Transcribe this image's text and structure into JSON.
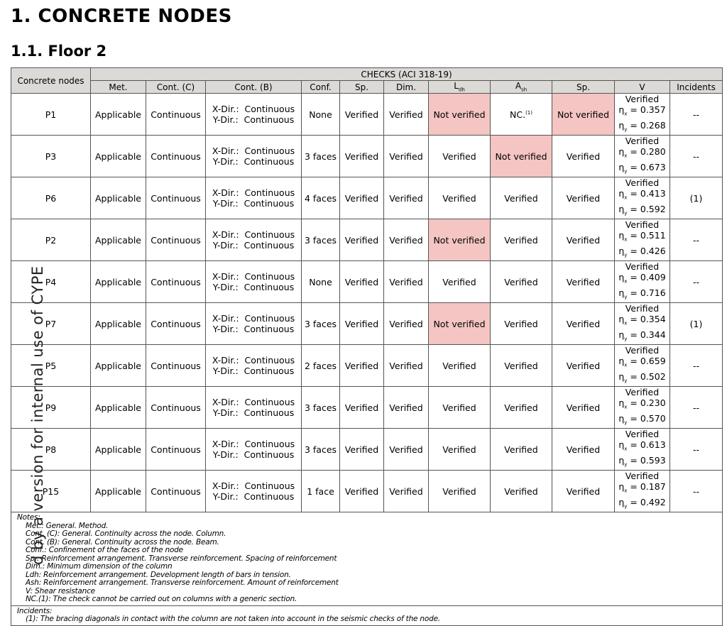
{
  "title": "1. CONCRETE NODES",
  "subtitle": "1.1. Floor 2",
  "watermark": "d by a version for internal use of CYPE",
  "colors": {
    "header_bg": "#dcdad6",
    "not_verified_bg": "#f4c5c2"
  },
  "table": {
    "header_first": "Concrete nodes",
    "header_group": "CHECKS (ACI 318-19)",
    "columns": [
      "Met.",
      "Cont. (C)",
      "Cont. (B)",
      "Conf.",
      "Sp.",
      "Dim.",
      "L",
      "A",
      "Sp.",
      "V",
      "Incidents"
    ],
    "col_subs": {
      "ldh": "dh",
      "ash": "sh"
    },
    "rows": [
      {
        "node": "P1",
        "met": "Applicable",
        "contc": "Continuous",
        "xdir": "X-Dir.:  Continuous",
        "ydir": "Y-Dir.:  Continuous",
        "conf": "None",
        "sp": "Verified",
        "dim": "Verified",
        "ldh": "Not verified",
        "ash": "NC.",
        "ash_note": "(1)",
        "sp2": "Not verified",
        "v": "Verified",
        "etax": "= 0.357",
        "etay": "= 0.268",
        "inc": "--"
      },
      {
        "node": "P3",
        "met": "Applicable",
        "contc": "Continuous",
        "xdir": "X-Dir.:  Continuous",
        "ydir": "Y-Dir.:  Continuous",
        "conf": "3 faces",
        "sp": "Verified",
        "dim": "Verified",
        "ldh": "Verified",
        "ash": "Not verified",
        "sp2": "Verified",
        "v": "Verified",
        "etax": "= 0.280",
        "etay": "= 0.673",
        "inc": "--"
      },
      {
        "node": "P6",
        "met": "Applicable",
        "contc": "Continuous",
        "xdir": "X-Dir.:  Continuous",
        "ydir": "Y-Dir.:  Continuous",
        "conf": "4 faces",
        "sp": "Verified",
        "dim": "Verified",
        "ldh": "Verified",
        "ash": "Verified",
        "sp2": "Verified",
        "v": "Verified",
        "etax": "= 0.413",
        "etay": "= 0.592",
        "inc": "(1)"
      },
      {
        "node": "P2",
        "met": "Applicable",
        "contc": "Continuous",
        "xdir": "X-Dir.:  Continuous",
        "ydir": "Y-Dir.:  Continuous",
        "conf": "3 faces",
        "sp": "Verified",
        "dim": "Verified",
        "ldh": "Not verified",
        "ash": "Verified",
        "sp2": "Verified",
        "v": "Verified",
        "etax": "= 0.511",
        "etay": "= 0.426",
        "inc": "--"
      },
      {
        "node": "P4",
        "met": "Applicable",
        "contc": "Continuous",
        "xdir": "X-Dir.:  Continuous",
        "ydir": "Y-Dir.:  Continuous",
        "conf": "None",
        "sp": "Verified",
        "dim": "Verified",
        "ldh": "Verified",
        "ash": "Verified",
        "sp2": "Verified",
        "v": "Verified",
        "etax": "= 0.409",
        "etay": "= 0.716",
        "inc": "--"
      },
      {
        "node": "P7",
        "met": "Applicable",
        "contc": "Continuous",
        "xdir": "X-Dir.:  Continuous",
        "ydir": "Y-Dir.:  Continuous",
        "conf": "3 faces",
        "sp": "Verified",
        "dim": "Verified",
        "ldh": "Not verified",
        "ash": "Verified",
        "sp2": "Verified",
        "v": "Verified",
        "etax": "= 0.354",
        "etay": "= 0.344",
        "inc": "(1)"
      },
      {
        "node": "P5",
        "met": "Applicable",
        "contc": "Continuous",
        "xdir": "X-Dir.:  Continuous",
        "ydir": "Y-Dir.:  Continuous",
        "conf": "2 faces",
        "sp": "Verified",
        "dim": "Verified",
        "ldh": "Verified",
        "ash": "Verified",
        "sp2": "Verified",
        "v": "Verified",
        "etax": "= 0.659",
        "etay": "= 0.502",
        "inc": "--"
      },
      {
        "node": "P9",
        "met": "Applicable",
        "contc": "Continuous",
        "xdir": "X-Dir.:  Continuous",
        "ydir": "Y-Dir.:  Continuous",
        "conf": "3 faces",
        "sp": "Verified",
        "dim": "Verified",
        "ldh": "Verified",
        "ash": "Verified",
        "sp2": "Verified",
        "v": "Verified",
        "etax": "= 0.230",
        "etay": "= 0.570",
        "inc": "--"
      },
      {
        "node": "P8",
        "met": "Applicable",
        "contc": "Continuous",
        "xdir": "X-Dir.:  Continuous",
        "ydir": "Y-Dir.:  Continuous",
        "conf": "3 faces",
        "sp": "Verified",
        "dim": "Verified",
        "ldh": "Verified",
        "ash": "Verified",
        "sp2": "Verified",
        "v": "Verified",
        "etax": "= 0.613",
        "etay": "= 0.593",
        "inc": "--"
      },
      {
        "node": "P15",
        "met": "Applicable",
        "contc": "Continuous",
        "xdir": "X-Dir.:  Continuous",
        "ydir": "Y-Dir.:  Continuous",
        "conf": "1 face",
        "sp": "Verified",
        "dim": "Verified",
        "ldh": "Verified",
        "ash": "Verified",
        "sp2": "Verified",
        "v": "Verified",
        "etax": "= 0.187",
        "etay": "= 0.492",
        "inc": "--"
      }
    ]
  },
  "notes": {
    "title": "Notes:",
    "items": [
      "Met.: General. Method.",
      "Cont. (C): General. Continuity across the node. Column.",
      "Cont. (B): General. Continuity across the node. Beam.",
      "Conf.: Confinement of the faces of the node",
      "Sp.: Reinforcement arrangement. Transverse reinforcement. Spacing of reinforcement",
      "Dim.: Minimum dimension of the column",
      "Ldh: Reinforcement arrangement. Development length of bars in tension.",
      "Ash: Reinforcement arrangement. Transverse reinforcement. Amount of reinforcement",
      "V: Shear resistance",
      "NC.(1): The check cannot be carried out on columns with a generic section."
    ]
  },
  "incidents": {
    "title": "Incidents:",
    "items": [
      "(1): The bracing diagonals in contact with the column are not taken into account in the seismic checks of the node."
    ]
  }
}
